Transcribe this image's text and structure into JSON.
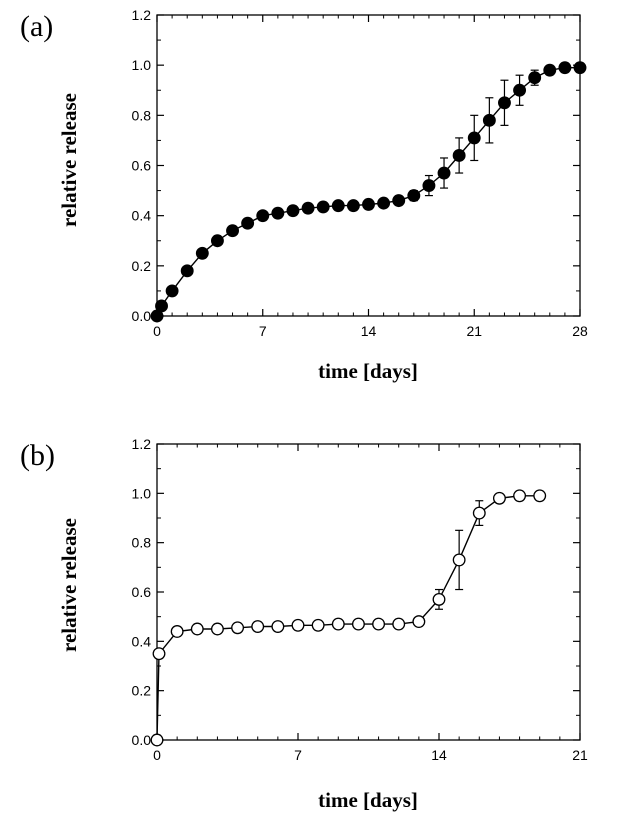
{
  "chart_data": [
    {
      "type": "line",
      "panel_label": "(a)",
      "xlabel": "time [days]",
      "ylabel": "relative release",
      "xlim": [
        0,
        28
      ],
      "ylim": [
        0.0,
        1.2
      ],
      "xticks": [
        0,
        7,
        14,
        21,
        28
      ],
      "xtick_labels": [
        "0",
        "7",
        "14",
        "21",
        "28"
      ],
      "yticks": [
        0.0,
        0.2,
        0.4,
        0.6,
        0.8,
        1.0,
        1.2
      ],
      "ytick_labels": [
        "0.0",
        "0.2",
        "0.4",
        "0.6",
        "0.8",
        "1.0",
        "1.2"
      ],
      "grid": false,
      "series": [
        {
          "name": "release",
          "marker": "filled-circle",
          "x": [
            0,
            0.3,
            1,
            2,
            3,
            4,
            5,
            6,
            7,
            8,
            9,
            10,
            11,
            12,
            13,
            14,
            15,
            16,
            17,
            18,
            19,
            20,
            21,
            22,
            23,
            24,
            25,
            26,
            27,
            28
          ],
          "y": [
            0.0,
            0.04,
            0.1,
            0.18,
            0.25,
            0.3,
            0.34,
            0.37,
            0.4,
            0.41,
            0.42,
            0.43,
            0.435,
            0.44,
            0.44,
            0.445,
            0.45,
            0.46,
            0.48,
            0.52,
            0.57,
            0.64,
            0.71,
            0.78,
            0.85,
            0.9,
            0.95,
            0.98,
            0.99,
            0.99
          ],
          "error": [
            0,
            0,
            0,
            0,
            0,
            0,
            0,
            0,
            0,
            0,
            0,
            0,
            0,
            0,
            0,
            0,
            0,
            0,
            0.02,
            0.04,
            0.06,
            0.07,
            0.09,
            0.09,
            0.09,
            0.06,
            0.03,
            0,
            0,
            0
          ]
        }
      ]
    },
    {
      "type": "line",
      "panel_label": "(b)",
      "xlabel": "time [days]",
      "ylabel": "relative release",
      "xlim": [
        0,
        21
      ],
      "ylim": [
        0.0,
        1.2
      ],
      "xticks": [
        0,
        7,
        14,
        21
      ],
      "xtick_labels": [
        "0",
        "7",
        "14",
        "21"
      ],
      "yticks": [
        0.0,
        0.2,
        0.4,
        0.6,
        0.8,
        1.0,
        1.2
      ],
      "ytick_labels": [
        "0.0",
        "0.2",
        "0.4",
        "0.6",
        "0.8",
        "1.0",
        "1.2"
      ],
      "grid": false,
      "series": [
        {
          "name": "release",
          "marker": "open-circle",
          "x": [
            0,
            0.1,
            1,
            2,
            3,
            4,
            5,
            6,
            7,
            8,
            9,
            10,
            11,
            12,
            13,
            14,
            15,
            16,
            17,
            18,
            19
          ],
          "y": [
            0.0,
            0.35,
            0.44,
            0.45,
            0.45,
            0.455,
            0.46,
            0.46,
            0.465,
            0.465,
            0.47,
            0.47,
            0.47,
            0.47,
            0.48,
            0.57,
            0.73,
            0.92,
            0.98,
            0.99,
            0.99
          ],
          "error": [
            0,
            0,
            0,
            0,
            0,
            0,
            0,
            0,
            0,
            0,
            0,
            0,
            0,
            0,
            0,
            0.04,
            0.12,
            0.05,
            0,
            0,
            0
          ]
        }
      ]
    }
  ]
}
